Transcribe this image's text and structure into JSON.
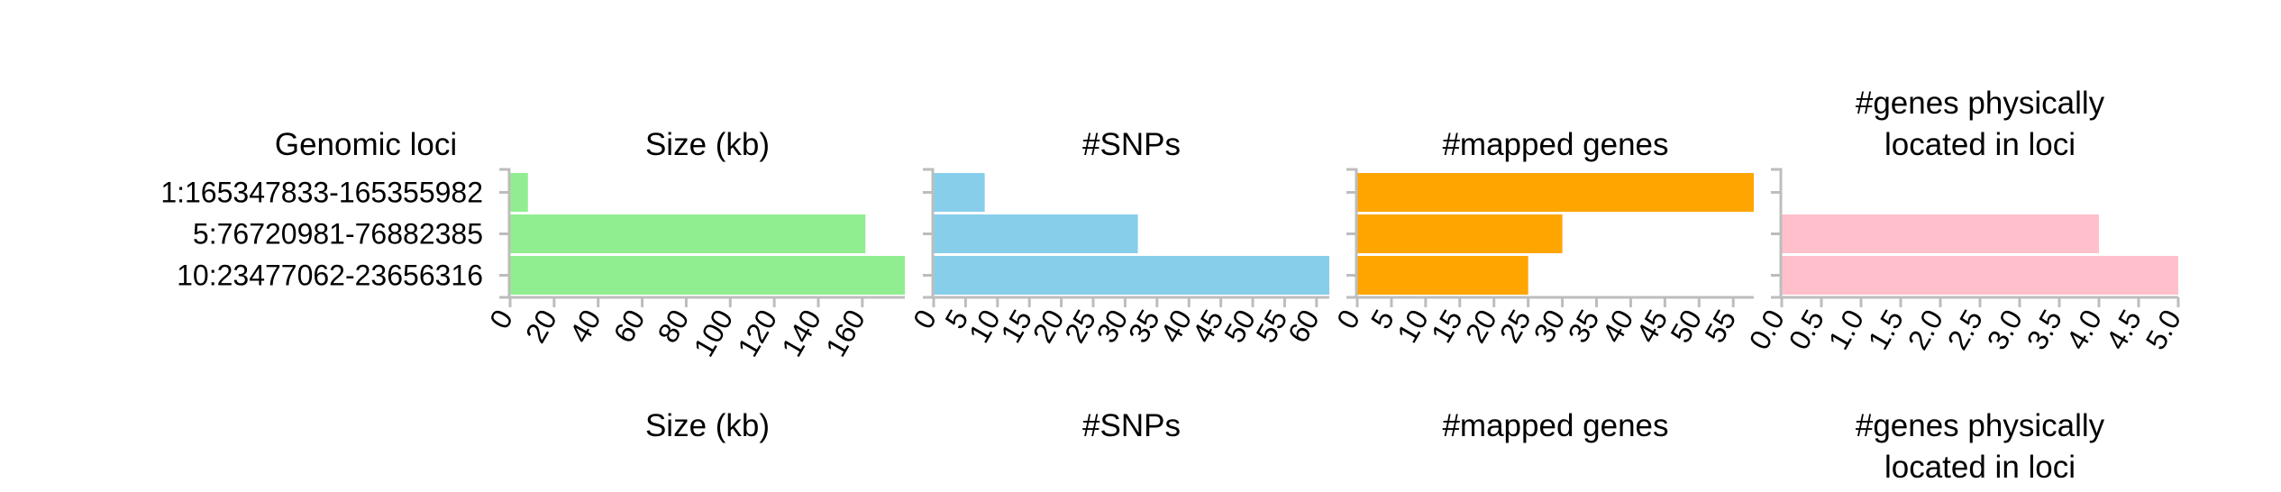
{
  "loci_header": "Genomic loci",
  "loci": [
    "1:165347833-165355982",
    "5:76720981-76882385",
    "10:23477062-23656316"
  ],
  "chart_data": [
    {
      "type": "bar",
      "orientation": "horizontal",
      "title": "Size (kb)",
      "xlabel": "Size (kb)",
      "color": "#90ee90",
      "categories": [
        "1:165347833-165355982",
        "5:76720981-76882385",
        "10:23477062-23656316"
      ],
      "values": [
        8.1,
        161.4,
        179.3
      ],
      "xlim": [
        0,
        179.3
      ],
      "ticks": [
        0,
        20,
        40,
        60,
        80,
        100,
        120,
        140,
        160
      ],
      "tick_labels": [
        "0",
        "20",
        "40",
        "60",
        "80",
        "100",
        "120",
        "140",
        "160"
      ],
      "grid": false
    },
    {
      "type": "bar",
      "orientation": "horizontal",
      "title": "#SNPs",
      "xlabel": "#SNPs",
      "color": "#87ceeb",
      "categories": [
        "1:165347833-165355982",
        "5:76720981-76882385",
        "10:23477062-23656316"
      ],
      "values": [
        8,
        32,
        62
      ],
      "xlim": [
        0,
        62
      ],
      "ticks": [
        0,
        5,
        10,
        15,
        20,
        25,
        30,
        35,
        40,
        45,
        50,
        55,
        60
      ],
      "tick_labels": [
        "0",
        "5",
        "10",
        "15",
        "20",
        "25",
        "30",
        "35",
        "40",
        "45",
        "50",
        "55",
        "60"
      ],
      "grid": false
    },
    {
      "type": "bar",
      "orientation": "horizontal",
      "title": "#mapped genes",
      "xlabel": "#mapped genes",
      "color": "#ffa500",
      "categories": [
        "1:165347833-165355982",
        "5:76720981-76882385",
        "10:23477062-23656316"
      ],
      "values": [
        58,
        30,
        25
      ],
      "xlim": [
        0,
        58
      ],
      "ticks": [
        0,
        5,
        10,
        15,
        20,
        25,
        30,
        35,
        40,
        45,
        50,
        55
      ],
      "tick_labels": [
        "0",
        "5",
        "10",
        "15",
        "20",
        "25",
        "30",
        "35",
        "40",
        "45",
        "50",
        "55"
      ],
      "grid": false
    },
    {
      "type": "bar",
      "orientation": "horizontal",
      "title": "#genes physically located in loci",
      "title_lines": [
        "#genes physically",
        "located in loci"
      ],
      "xlabel": "#genes physically located in loci",
      "xlabel_lines": [
        "#genes physically",
        "located in loci"
      ],
      "color": "#ffc0cb",
      "categories": [
        "1:165347833-165355982",
        "5:76720981-76882385",
        "10:23477062-23656316"
      ],
      "values": [
        0,
        4,
        5
      ],
      "xlim": [
        0,
        5
      ],
      "ticks": [
        0,
        0.5,
        1,
        1.5,
        2,
        2.5,
        3,
        3.5,
        4,
        4.5,
        5
      ],
      "tick_labels": [
        "0.0",
        "0.5",
        "1.0",
        "1.5",
        "2.0",
        "2.5",
        "3.0",
        "3.5",
        "4.0",
        "4.5",
        "5.0"
      ],
      "grid": false
    }
  ]
}
